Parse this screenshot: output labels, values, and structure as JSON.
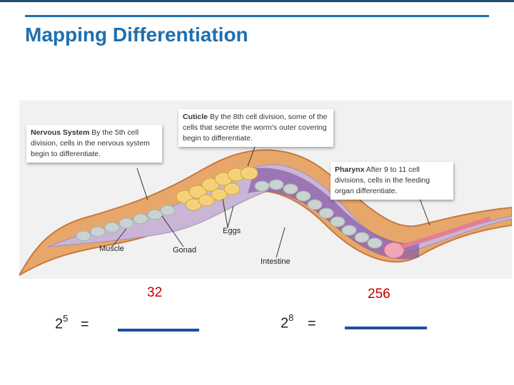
{
  "slide": {
    "title": "Mapping Differentiation"
  },
  "figure": {
    "callouts": {
      "nervous": {
        "heading": "Nervous System",
        "text": "By the 5th cell division, cells in the nervous system begin to differentiate."
      },
      "cuticle": {
        "heading": "Cuticle",
        "text": "By the 8th cell division, some of the cells that secrete the worm's outer covering begin to differentiate."
      },
      "pharynx": {
        "heading": "Pharynx",
        "text": "After 9 to 11 cell divisions, cells in the feeding organ differentiate."
      }
    },
    "labels": {
      "eggs": "Eggs",
      "muscle": "Muscle",
      "gonad": "Gonad",
      "intestine": "Intestine"
    }
  },
  "equations": {
    "left": {
      "base": "2",
      "exponent": "5",
      "equals": "=",
      "answer": "32"
    },
    "right": {
      "base": "2",
      "exponent": "8",
      "equals": "=",
      "answer": "256"
    }
  },
  "colors": {
    "title": "#1f6fae",
    "answer": "#c00000",
    "blank": "#1f4e9e"
  }
}
